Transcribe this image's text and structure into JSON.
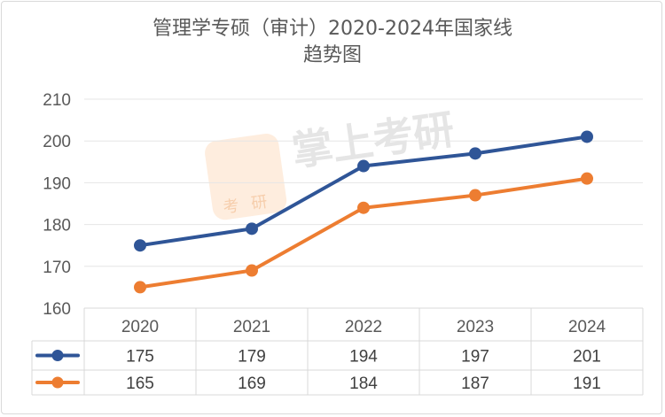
{
  "chart_data": {
    "type": "line",
    "title": "管理学专硕（审计）2020-2024年国家线",
    "subtitle": "趋势图",
    "categories": [
      "2020",
      "2021",
      "2022",
      "2023",
      "2024"
    ],
    "series": [
      {
        "name": "",
        "values": [
          175,
          179,
          194,
          197,
          201
        ],
        "color": "#2f5597"
      },
      {
        "name": "",
        "values": [
          165,
          169,
          184,
          187,
          191
        ],
        "color": "#ed7d31"
      }
    ],
    "ylim": [
      160,
      210
    ],
    "yticks": [
      "160",
      "170",
      "180",
      "190",
      "200",
      "210"
    ],
    "grid": true,
    "legend": "data-table",
    "xlabel": "",
    "ylabel": ""
  },
  "watermark": {
    "text": "掌上考研",
    "badge": "考研"
  }
}
